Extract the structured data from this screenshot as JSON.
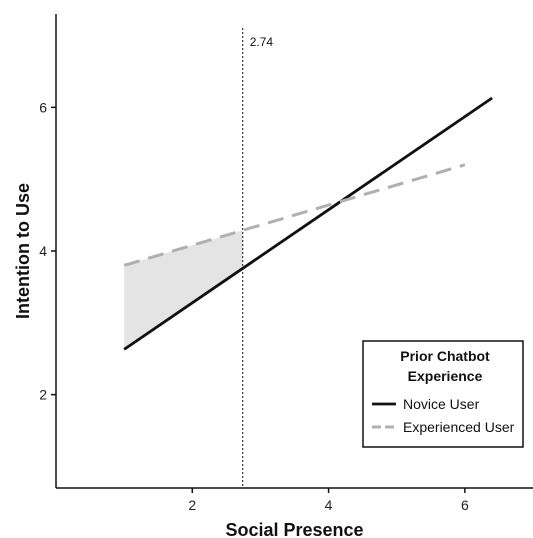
{
  "chart_data": {
    "type": "line",
    "xlabel": "Social Presence",
    "ylabel": "Intention to Use",
    "xlim": [
      0.0,
      7.0
    ],
    "ylim": [
      0.7,
      7.3
    ],
    "x_ticks": [
      2,
      4,
      6
    ],
    "y_ticks": [
      2,
      4,
      6
    ],
    "grid": false,
    "legend_title_lines": [
      "Prior Chatbot",
      "Experience"
    ],
    "legend_position": "bottom-right",
    "series": [
      {
        "name": "Novice User",
        "style": "solid",
        "color": "#111111",
        "x": [
          1.0,
          6.4
        ],
        "y": [
          2.63,
          6.13
        ]
      },
      {
        "name": "Experienced User",
        "style": "dashed",
        "color": "#b0b0b0",
        "x": [
          1.0,
          6.0
        ],
        "y": [
          3.8,
          5.2
        ]
      }
    ],
    "vline": {
      "x": 2.74,
      "label": "2.74",
      "style": "dotted"
    },
    "shaded_region": {
      "x_from": 1.0,
      "x_to": 2.74,
      "color": "#e4e4e4"
    }
  }
}
